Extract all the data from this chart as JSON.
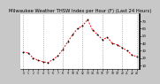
{
  "title": "Milwaukee Weather THSW Index per Hour (F) (Last 24 Hours)",
  "title_fontsize": 3.8,
  "background_color": "#c8c8c8",
  "plot_bg_color": "#ffffff",
  "line_color": "#ff0000",
  "marker_color": "#000000",
  "grid_color": "#888888",
  "hours": [
    0,
    1,
    2,
    3,
    4,
    5,
    6,
    7,
    8,
    9,
    10,
    11,
    12,
    13,
    14,
    15,
    16,
    17,
    18,
    19,
    20,
    21,
    22,
    23
  ],
  "values": [
    28,
    27,
    20,
    17,
    15,
    14,
    18,
    23,
    32,
    42,
    52,
    60,
    64,
    72,
    58,
    52,
    45,
    48,
    40,
    38,
    34,
    30,
    24,
    22
  ],
  "ylim_min": 5,
  "ylim_max": 80,
  "ytick_vals": [
    10,
    20,
    30,
    40,
    50,
    60,
    70
  ],
  "ytick_labels": [
    "10",
    "20",
    "30",
    "40",
    "50",
    "60",
    "70"
  ],
  "right_border_color": "#000000",
  "vgrid_positions": [
    0,
    4,
    8,
    12,
    16,
    20,
    23
  ]
}
